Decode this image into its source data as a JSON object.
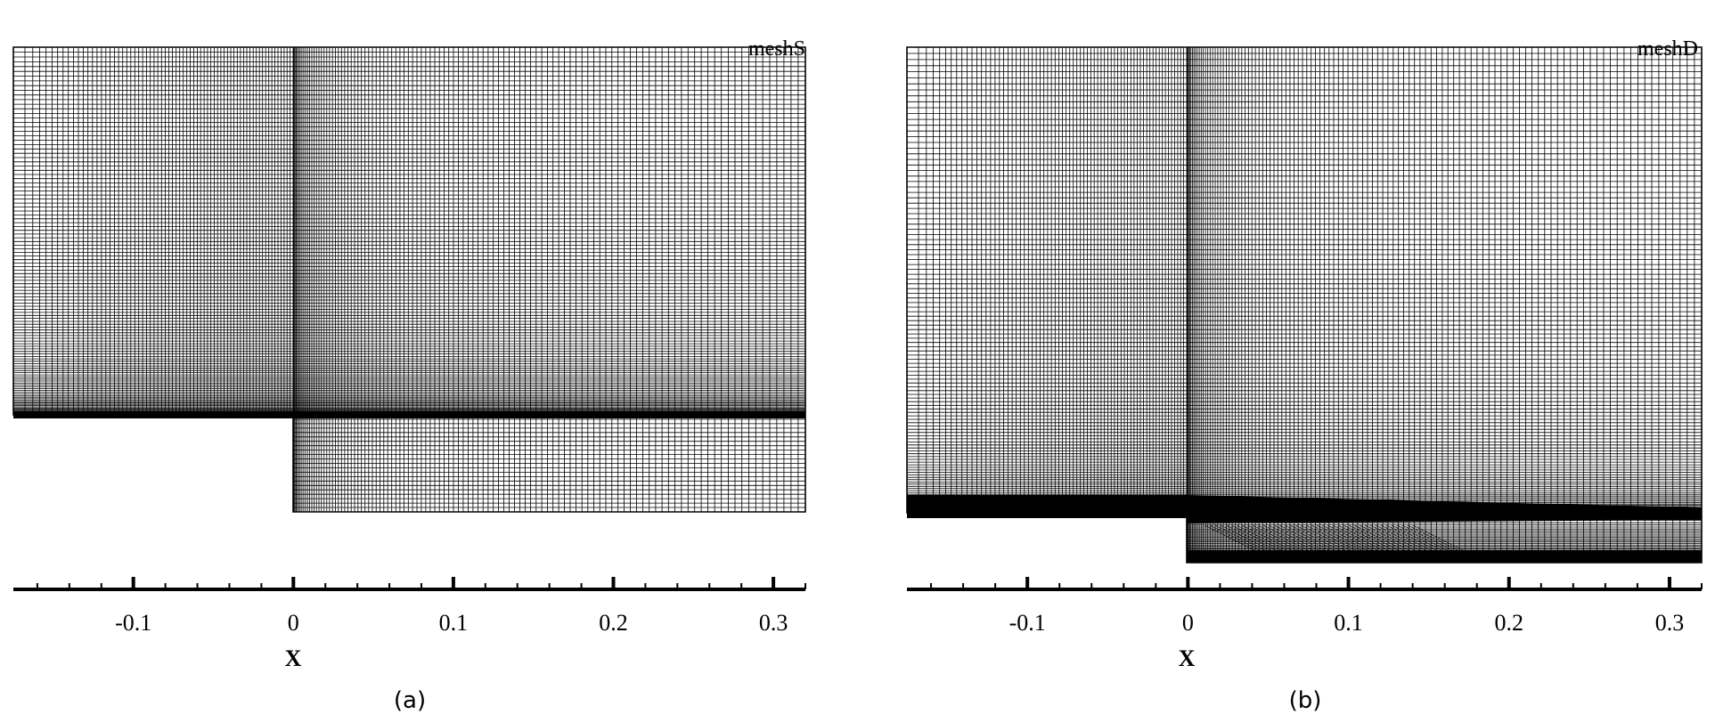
{
  "panels": [
    {
      "id": "a",
      "title": "meshS",
      "caption": "(a)",
      "xlabel": "X",
      "ticks": [
        "-0.1",
        "0",
        "0.1",
        "0.2",
        "0.3"
      ],
      "tick_values": [
        -0.1,
        0,
        0.1,
        0.2,
        0.3
      ],
      "xlim": [
        -0.175,
        0.32
      ],
      "mesh_style": "structured"
    },
    {
      "id": "b",
      "title": "meshD",
      "caption": "(b)",
      "xlabel": "X",
      "ticks": [
        "-0.1",
        "0",
        "0.1",
        "0.2",
        "0.3"
      ],
      "tick_values": [
        -0.1,
        0,
        0.1,
        0.2,
        0.3
      ],
      "xlim": [
        -0.175,
        0.32
      ],
      "mesh_style": "deformed"
    }
  ],
  "colors": {
    "line": "#000000",
    "background": "#ffffff"
  }
}
